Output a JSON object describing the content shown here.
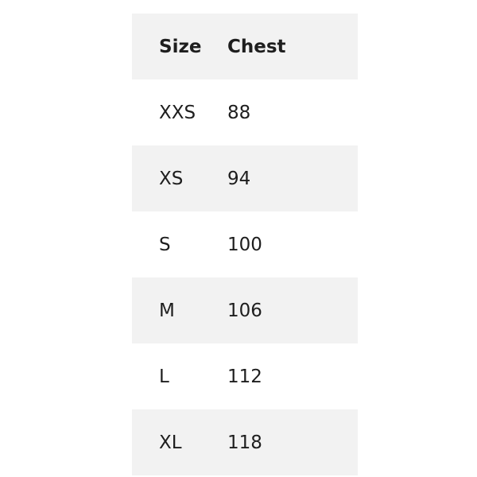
{
  "table": {
    "headers": [
      "Size",
      "Chest"
    ],
    "rows": [
      [
        "XXS",
        "88"
      ],
      [
        "XS",
        "94"
      ],
      [
        "S",
        "100"
      ],
      [
        "M",
        "106"
      ],
      [
        "L",
        "112"
      ],
      [
        "XL",
        "118"
      ]
    ]
  },
  "colors": {
    "stripe": "#f2f2f2",
    "text": "#1e1e1e"
  }
}
